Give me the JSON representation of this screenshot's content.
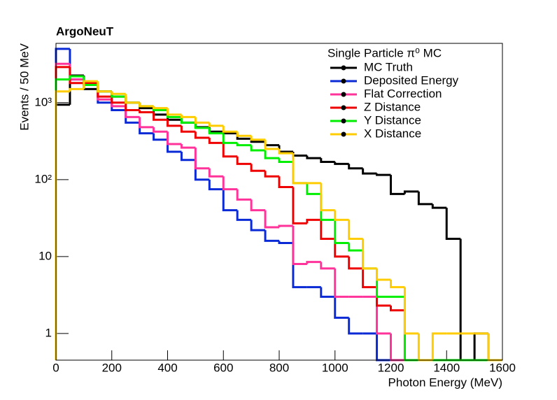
{
  "chart_data": {
    "type": "histogram",
    "title": "ArgoNeuT",
    "xlabel": "Photon Energy (MeV)",
    "ylabel": "Events / 50 MeV",
    "legend_title": "Single Particle π⁰ MC",
    "legend": "top-right",
    "log_y": true,
    "bins": [
      0,
      50,
      100,
      150,
      200,
      250,
      300,
      350,
      400,
      450,
      500,
      550,
      600,
      650,
      700,
      750,
      800,
      850,
      900,
      950,
      1000,
      1050,
      1100,
      1150,
      1200,
      1250,
      1300,
      1350,
      1400,
      1450,
      1500,
      1550,
      1600
    ],
    "xlim": [
      0,
      1600
    ],
    "xticks": [
      0,
      200,
      400,
      600,
      800,
      1000,
      1200,
      1400,
      1600
    ],
    "ylim": [
      0.45,
      5900
    ],
    "yticks": [
      1,
      10,
      {
        "value": 100,
        "label": "10²"
      },
      {
        "value": 1000,
        "label": "10³"
      }
    ],
    "series": [
      {
        "name": "MC Truth",
        "color": "#000000",
        "values": [
          940,
          2250,
          1500,
          1400,
          1200,
          1000,
          850,
          700,
          600,
          550,
          480,
          420,
          400,
          340,
          310,
          280,
          230,
          205,
          190,
          170,
          160,
          140,
          120,
          115,
          65,
          70,
          48,
          43,
          17,
          0,
          1,
          0
        ]
      },
      {
        "name": "Deposited Energy",
        "color": "#0a2ad6",
        "values": [
          5000,
          2000,
          1700,
          1000,
          800,
          550,
          400,
          330,
          230,
          180,
          100,
          75,
          40,
          30,
          22,
          16,
          15,
          4,
          4,
          3,
          1.6,
          1,
          1,
          0,
          0,
          0,
          0,
          0,
          0,
          0,
          0,
          0
        ]
      },
      {
        "name": "Flat Correction",
        "color": "#ff3399",
        "values": [
          3200,
          2000,
          1700,
          1100,
          900,
          650,
          480,
          420,
          290,
          260,
          140,
          110,
          75,
          55,
          40,
          24,
          25,
          8,
          8.5,
          7,
          3,
          3,
          3,
          1,
          0,
          0,
          0,
          0,
          0,
          0,
          0,
          0
        ]
      },
      {
        "name": "Z Distance",
        "color": "#ee0000",
        "values": [
          2900,
          1800,
          1800,
          1200,
          1000,
          800,
          750,
          600,
          500,
          420,
          350,
          300,
          200,
          160,
          130,
          110,
          80,
          27,
          30,
          17,
          10,
          7,
          4,
          2.3,
          2,
          0,
          0,
          0,
          0,
          0,
          0,
          0
        ]
      },
      {
        "name": "Y Distance",
        "color": "#00ee00",
        "values": [
          2000,
          2200,
          1700,
          1400,
          1200,
          1000,
          900,
          800,
          650,
          550,
          470,
          400,
          300,
          280,
          240,
          190,
          170,
          90,
          65,
          30,
          15,
          12,
          7,
          3,
          3,
          0,
          0,
          0,
          0,
          0,
          0,
          0
        ]
      },
      {
        "name": "X Distance",
        "color": "#ffcc00",
        "values": [
          1400,
          1500,
          1900,
          1400,
          1300,
          1000,
          900,
          850,
          700,
          650,
          550,
          500,
          420,
          370,
          330,
          250,
          220,
          90,
          90,
          40,
          30,
          17,
          7,
          5,
          4,
          1,
          0,
          1,
          1,
          1,
          1,
          0
        ]
      }
    ]
  }
}
